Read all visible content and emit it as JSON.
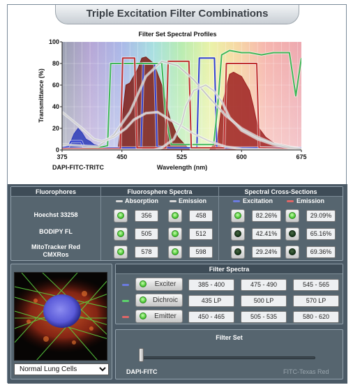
{
  "title": "Triple Excitation Filter Combinations",
  "chart_data": {
    "type": "area",
    "title": "Filter Set Spectral Profiles",
    "xlabel": "Wavelength (nm)",
    "ylabel": "Transmittance (%)",
    "xlim": [
      375,
      675
    ],
    "ylim": [
      0,
      100
    ],
    "xticks": [
      375,
      450,
      525,
      600,
      675
    ],
    "yticks": [
      0,
      20,
      40,
      60,
      80,
      100
    ],
    "background": "visible spectrum gradient",
    "series": [
      {
        "color": "#2c3bb8",
        "style": "fill",
        "x": [
          375,
          385,
          390,
          395,
          400,
          405,
          410,
          415,
          420,
          425,
          430,
          435,
          440,
          450
        ],
        "y": [
          0,
          6,
          15,
          20,
          16,
          10,
          8,
          5,
          4,
          3,
          2,
          1,
          1,
          0
        ]
      },
      {
        "color": "#7e1b14",
        "style": "fill",
        "x": [
          445,
          452,
          455,
          460,
          470,
          475,
          480,
          490,
          500,
          505,
          510,
          520,
          535
        ],
        "y": [
          0,
          40,
          60,
          62,
          75,
          85,
          86,
          80,
          60,
          45,
          30,
          12,
          0
        ]
      },
      {
        "color": "#9e2020",
        "style": "fill",
        "x": [
          560,
          570,
          575,
          580,
          585,
          590,
          600,
          610,
          615,
          620,
          630,
          645,
          660,
          675
        ],
        "y": [
          0,
          10,
          40,
          55,
          70,
          72,
          68,
          55,
          40,
          22,
          12,
          4,
          2,
          1
        ]
      },
      {
        "color": "#303fcf",
        "style": "line",
        "x": [
          375,
          383,
          386,
          399,
          402,
          420,
          450,
          474,
          477,
          491,
          494,
          510,
          544,
          547,
          566,
          569,
          600,
          675
        ],
        "y": [
          2,
          3,
          8,
          8,
          3,
          2,
          2,
          2,
          80,
          80,
          3,
          2,
          2,
          85,
          85,
          2,
          2,
          2
        ]
      },
      {
        "color": "#40b858",
        "style": "line",
        "x": [
          375,
          420,
          432,
          436,
          500,
          505,
          512,
          518,
          560,
          565,
          570,
          575,
          585,
          600,
          610,
          625,
          640,
          660,
          668,
          675
        ],
        "y": [
          0,
          2,
          4,
          80,
          80,
          30,
          5,
          5,
          5,
          5,
          40,
          88,
          92,
          90,
          90,
          88,
          90,
          90,
          50,
          85
        ]
      },
      {
        "color": "#c03030",
        "style": "line",
        "x": [
          375,
          448,
          451,
          466,
          469,
          505,
          508,
          534,
          537,
          578,
          581,
          619,
          622,
          675
        ],
        "y": [
          1,
          1,
          85,
          85,
          2,
          2,
          82,
          82,
          2,
          2,
          80,
          80,
          2,
          1
        ]
      },
      {
        "color": "#c8c8c8",
        "style": "line",
        "x": [
          375,
          420,
          440,
          460,
          480,
          500,
          520,
          540,
          560,
          580,
          600,
          620,
          640,
          660,
          675
        ],
        "y": [
          5,
          3,
          14,
          35,
          68,
          82,
          78,
          65,
          48,
          32,
          20,
          12,
          6,
          3,
          1
        ]
      },
      {
        "color": "#d4d4d4",
        "style": "line",
        "x": [
          375,
          400,
          415,
          425,
          440,
          455,
          465,
          470,
          480,
          495,
          510,
          525,
          540,
          560,
          580,
          600,
          675
        ],
        "y": [
          35,
          20,
          10,
          8,
          12,
          20,
          28,
          30,
          34,
          35,
          28,
          22,
          15,
          8,
          3,
          1,
          0
        ]
      },
      {
        "color": "#cfcfcf",
        "style": "line",
        "x": [
          375,
          490,
          500,
          515,
          525,
          530,
          540,
          555,
          565,
          575,
          585,
          600,
          620,
          640,
          660,
          675
        ],
        "y": [
          0,
          0,
          2,
          10,
          25,
          40,
          55,
          60,
          55,
          45,
          30,
          18,
          10,
          5,
          2,
          1
        ]
      }
    ]
  },
  "chart_footer_left": "DAPI-FITC-TRITC",
  "fluor": {
    "headers": {
      "fluorophores": "Fluorophores",
      "spectra": "Fluorosphere Spectra",
      "cross": "Spectral Cross-Sections"
    },
    "legend": {
      "absorption": "Absorption",
      "emission": "Emission",
      "excitation": "Excitation",
      "emission2": "Emission"
    },
    "rows": [
      {
        "name": "Hoechst 33258",
        "absorption": "356",
        "emission": "458",
        "excitation": "82.26%",
        "emission_cs": "29.09%",
        "abs_on": true,
        "em_on": true,
        "ex_on": true,
        "emcs_on": true
      },
      {
        "name": "BODIPY FL",
        "absorption": "505",
        "emission": "512",
        "excitation": "42.41%",
        "emission_cs": "65.16%",
        "abs_on": true,
        "em_on": true,
        "ex_on": false,
        "emcs_on": false
      },
      {
        "name": "MitoTracker Red CMXRos",
        "absorption": "578",
        "emission": "598",
        "excitation": "29.24%",
        "emission_cs": "69.36%",
        "abs_on": true,
        "em_on": true,
        "ex_on": false,
        "emcs_on": false
      }
    ]
  },
  "filters": {
    "header": "Filter Spectra",
    "rows": [
      {
        "label": "Exciter",
        "color": "#6b7be0",
        "values": [
          "385 - 400",
          "475 - 490",
          "545 - 565"
        ]
      },
      {
        "label": "Dichroic",
        "color": "#5cd46c",
        "values": [
          "435 LP",
          "500 LP",
          "570 LP"
        ]
      },
      {
        "label": "Emitter",
        "color": "#e06666",
        "values": [
          "450 - 465",
          "505 - 535",
          "580 - 620"
        ]
      }
    ]
  },
  "filter_set": {
    "header": "Filter Set",
    "left_label": "DAPI-FITC",
    "right_label": "FITC-Texas Red",
    "position": 0
  },
  "specimen": {
    "selected": "Normal Lung Cells"
  },
  "colors": {
    "excitation": "#6b7be0",
    "emission": "#e06666",
    "absorption": "#d0d0d0"
  }
}
